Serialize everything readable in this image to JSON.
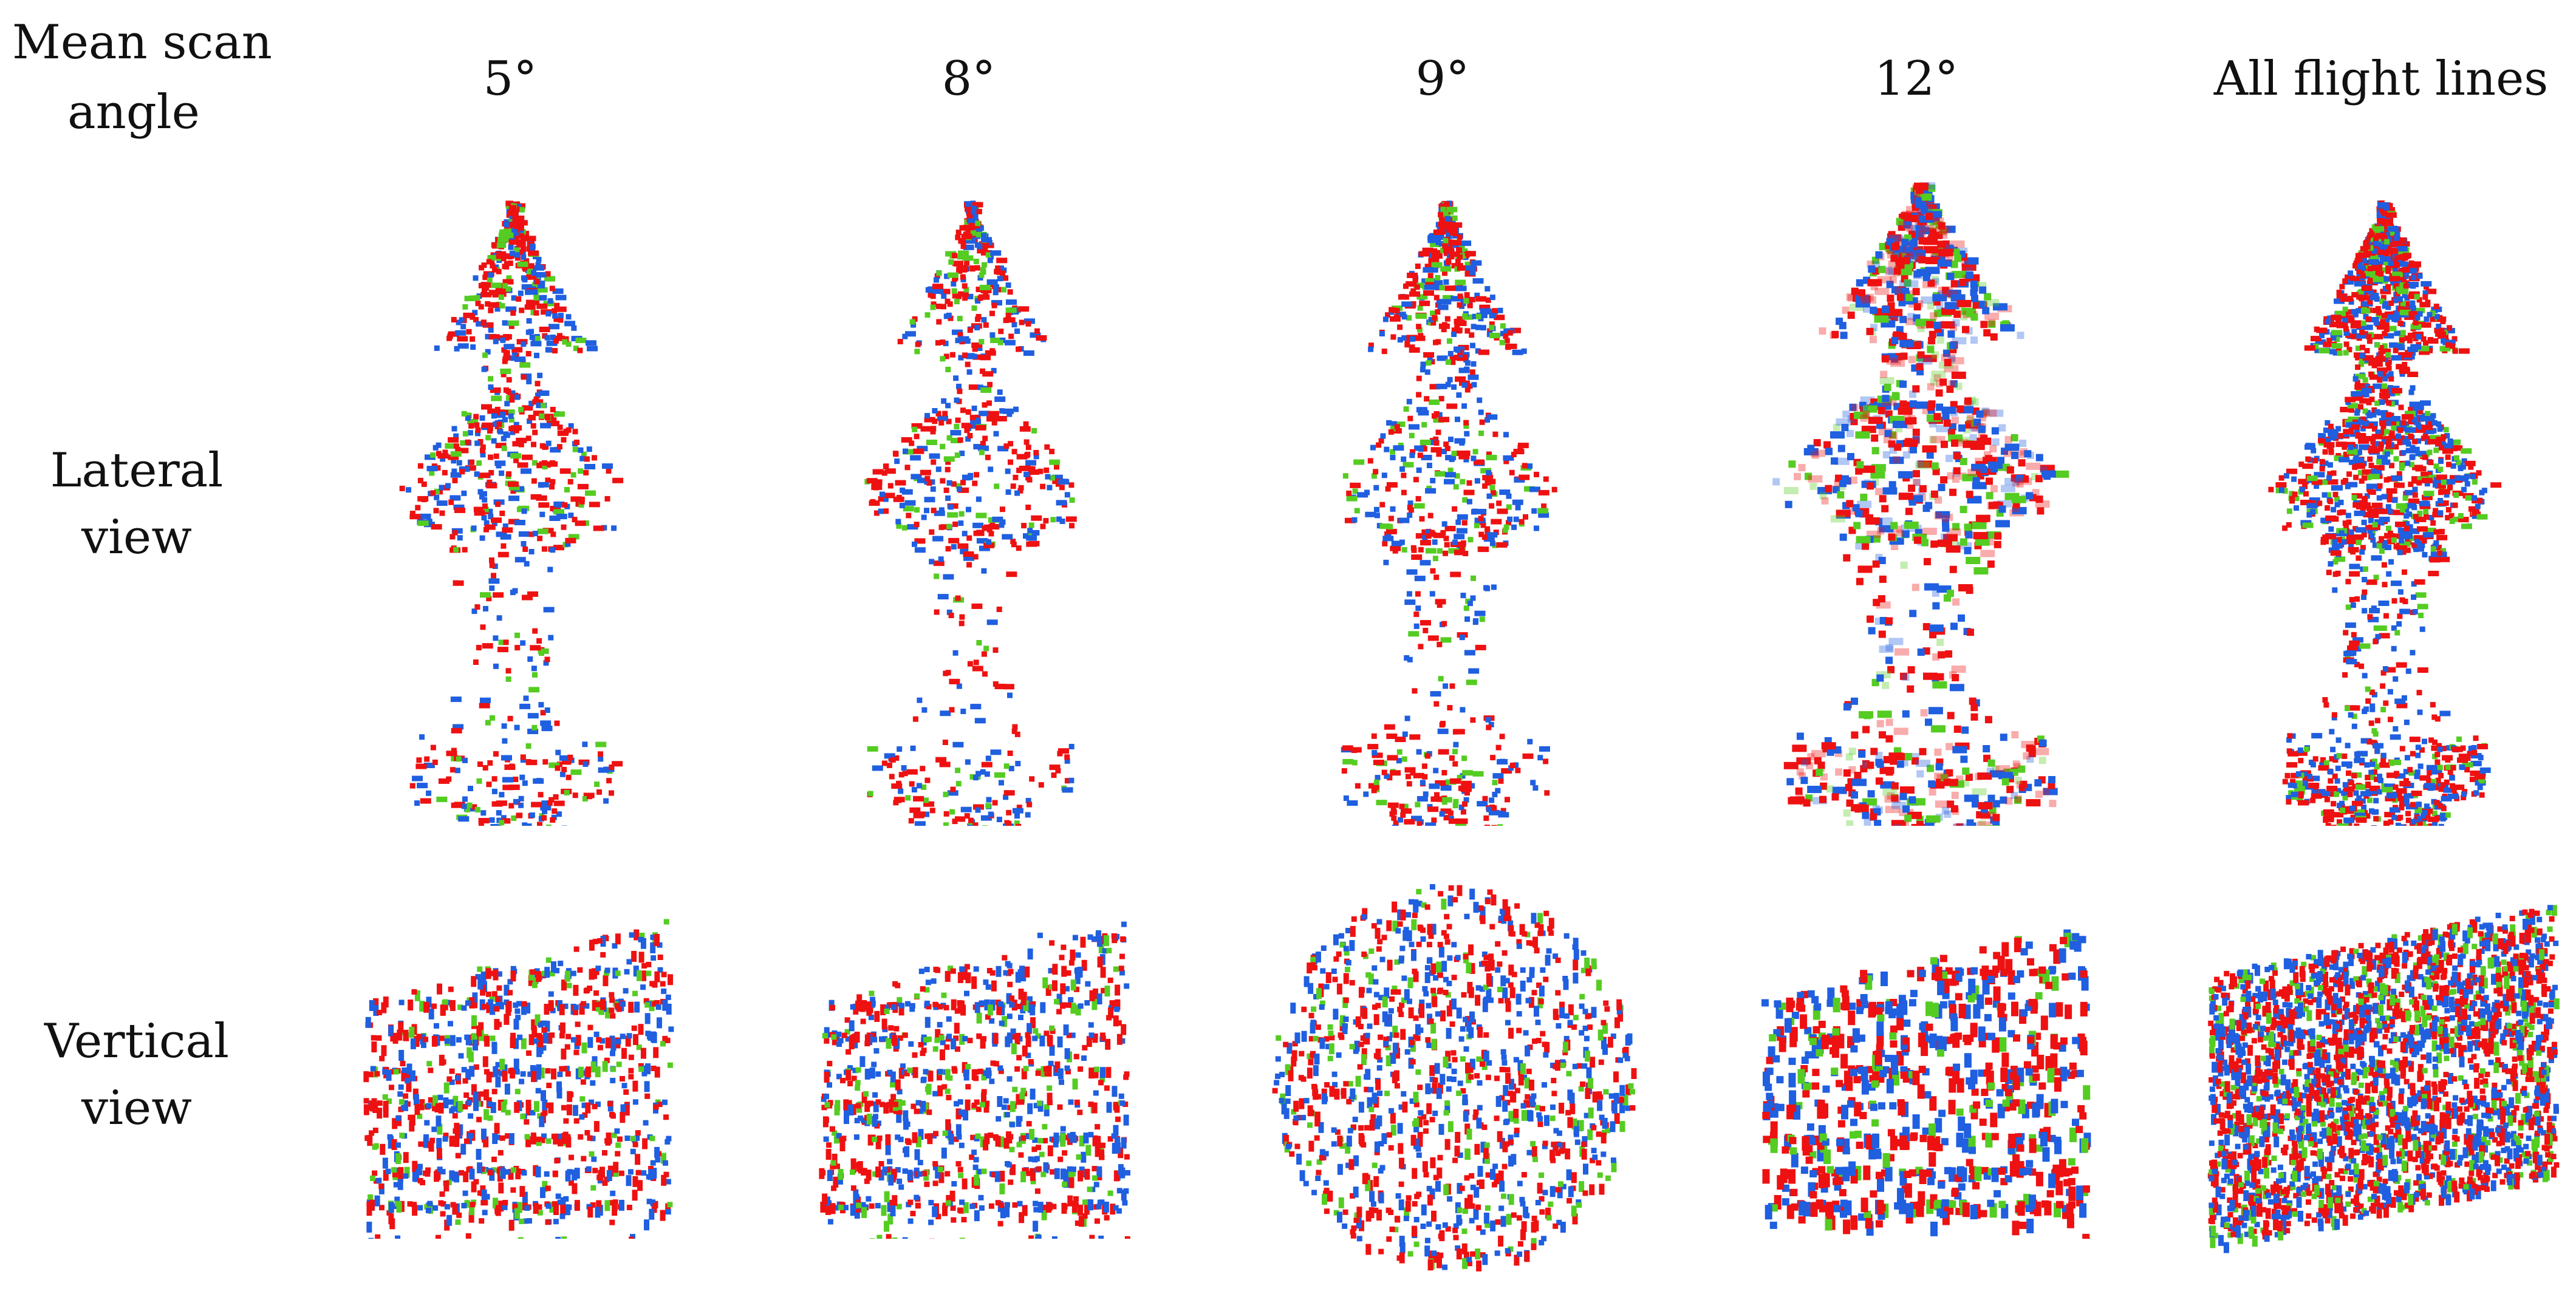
{
  "corner_label": {
    "line1": "Mean scan",
    "line2": "angle"
  },
  "columns": [
    {
      "id": "5deg",
      "label": "5°"
    },
    {
      "id": "8deg",
      "label": "8°"
    },
    {
      "id": "9deg",
      "label": "9°"
    },
    {
      "id": "12deg",
      "label": "12°"
    },
    {
      "id": "all",
      "label": "All flight lines"
    }
  ],
  "rows": [
    {
      "id": "lateral",
      "line1": "Lateral",
      "line2": "view"
    },
    {
      "id": "vertical",
      "line1": "Vertical",
      "line2": "view"
    }
  ],
  "point_colors": {
    "red": "#ee1111",
    "blue": "#1f5fe0",
    "green": "#55cc22"
  }
}
